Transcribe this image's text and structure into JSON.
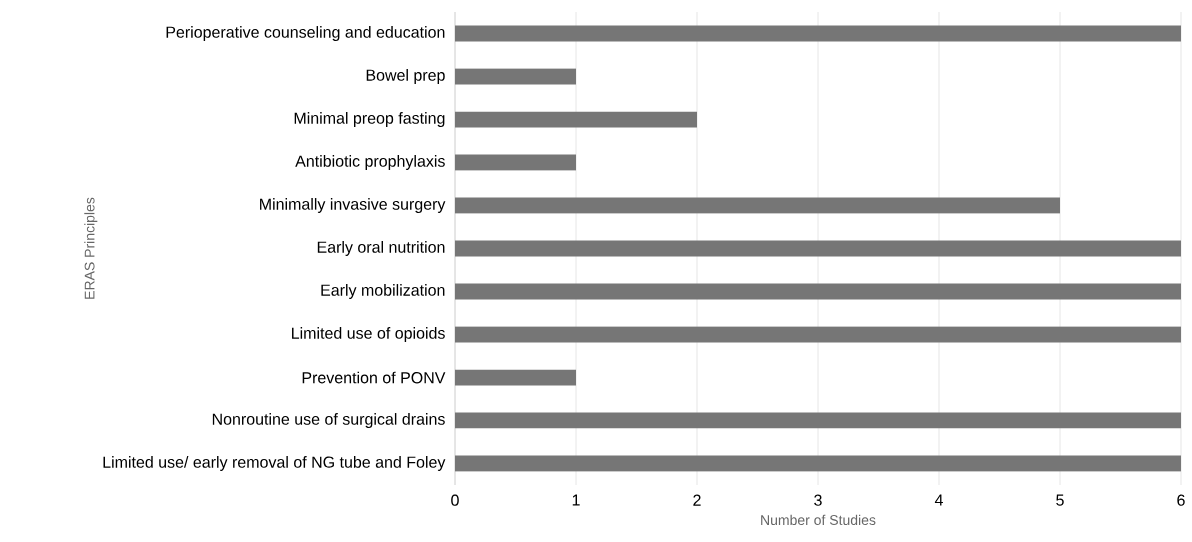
{
  "chart_data": {
    "type": "bar",
    "orientation": "horizontal",
    "categories": [
      "Perioperative counseling and education",
      "Bowel prep",
      "Minimal preop fasting",
      "Antibiotic prophylaxis",
      "Minimally invasive surgery",
      "Early oral nutrition",
      "Early mobilization",
      "Limited use of opioids",
      "Prevention of PONV",
      "Nonroutine use of surgical drains",
      "Limited use/ early removal of NG tube and Foley"
    ],
    "values": [
      6,
      1,
      2,
      1,
      5,
      6,
      6,
      6,
      1,
      6,
      6
    ],
    "color": "#767676",
    "xlim": [
      0,
      6
    ],
    "xticks": [
      0,
      1,
      2,
      3,
      4,
      5,
      6
    ],
    "xlabel": "Number of Studies",
    "ylabel": "ERAS Principles",
    "grid": "x"
  }
}
